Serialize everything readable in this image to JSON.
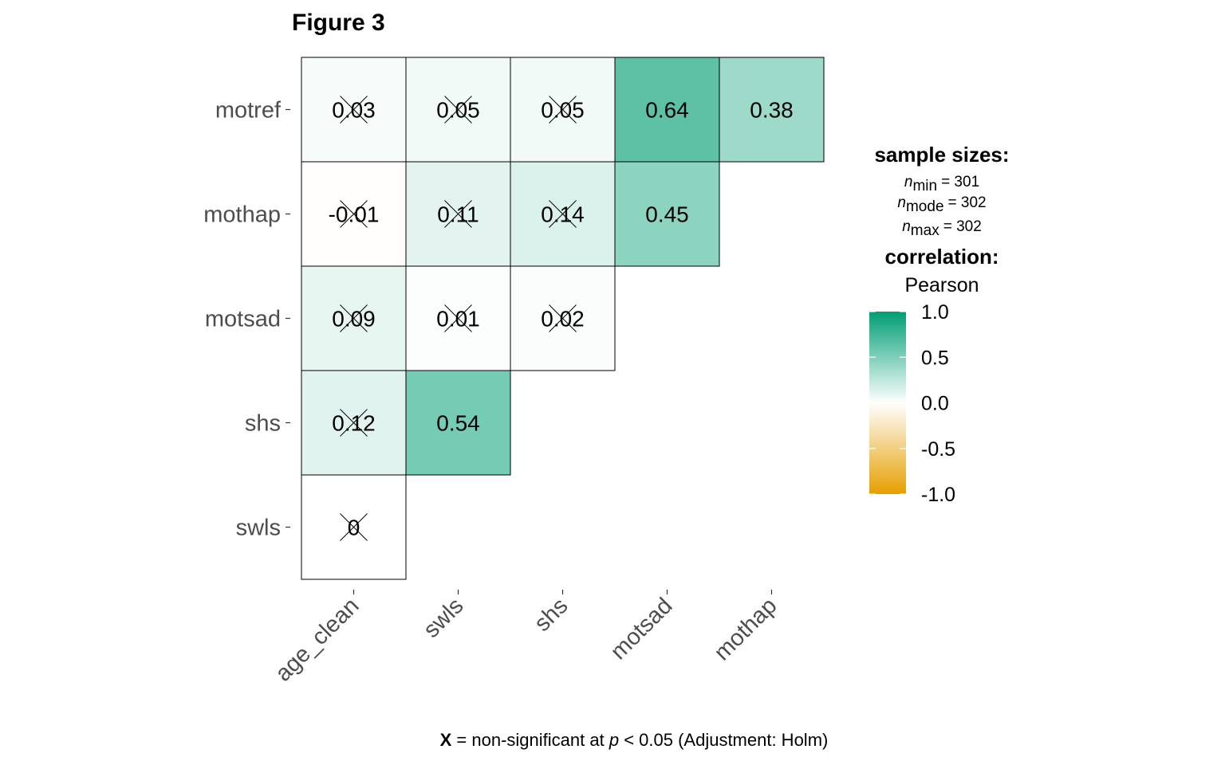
{
  "chart_data": {
    "type": "heatmap",
    "title": "Figure 3",
    "x_categories": [
      "age_clean",
      "swls",
      "shs",
      "motsad",
      "mothap"
    ],
    "y_categories": [
      "motref",
      "mothap",
      "motsad",
      "shs",
      "swls"
    ],
    "cells": [
      {
        "x": "age_clean",
        "y": "motref",
        "value": 0.03,
        "label": "0.03",
        "significant": false
      },
      {
        "x": "swls",
        "y": "motref",
        "value": 0.05,
        "label": "0.05",
        "significant": false
      },
      {
        "x": "shs",
        "y": "motref",
        "value": 0.05,
        "label": "0.05",
        "significant": false
      },
      {
        "x": "motsad",
        "y": "motref",
        "value": 0.64,
        "label": "0.64",
        "significant": true
      },
      {
        "x": "mothap",
        "y": "motref",
        "value": 0.38,
        "label": "0.38",
        "significant": true
      },
      {
        "x": "age_clean",
        "y": "mothap",
        "value": -0.01,
        "label": "-0.01",
        "significant": false
      },
      {
        "x": "swls",
        "y": "mothap",
        "value": 0.11,
        "label": "0.11",
        "significant": false
      },
      {
        "x": "shs",
        "y": "mothap",
        "value": 0.14,
        "label": "0.14",
        "significant": false
      },
      {
        "x": "motsad",
        "y": "mothap",
        "value": 0.45,
        "label": "0.45",
        "significant": true
      },
      {
        "x": "age_clean",
        "y": "motsad",
        "value": 0.09,
        "label": "0.09",
        "significant": false
      },
      {
        "x": "swls",
        "y": "motsad",
        "value": 0.01,
        "label": "0.01",
        "significant": false
      },
      {
        "x": "shs",
        "y": "motsad",
        "value": 0.02,
        "label": "0.02",
        "significant": false
      },
      {
        "x": "age_clean",
        "y": "shs",
        "value": 0.12,
        "label": "0.12",
        "significant": false
      },
      {
        "x": "swls",
        "y": "shs",
        "value": 0.54,
        "label": "0.54",
        "significant": true
      },
      {
        "x": "age_clean",
        "y": "swls",
        "value": 0,
        "label": "0",
        "significant": false
      }
    ],
    "colorscale": {
      "low": "#E69F00",
      "mid": "#FFFFFF",
      "high": "#009E73",
      "range": [
        -1,
        1
      ]
    },
    "legend": {
      "placement": "right",
      "sample_sizes_title": "sample sizes:",
      "n_symbol": "n",
      "n_min_sub": "min",
      "n_min_value": "= 301",
      "n_mode_sub": "mode",
      "n_mode_value": "= 302",
      "n_max_sub": "max",
      "n_max_value": "= 302",
      "correlation_title": "correlation:",
      "correlation_method": "Pearson",
      "ticks": [
        "1.0",
        "0.5",
        "0.0",
        "-0.5",
        "-1.0"
      ]
    },
    "caption": {
      "x_mark": "X",
      "before_p": " = non-significant at ",
      "p": "p",
      "after_p": " < 0.05 (Adjustment: Holm)"
    }
  }
}
